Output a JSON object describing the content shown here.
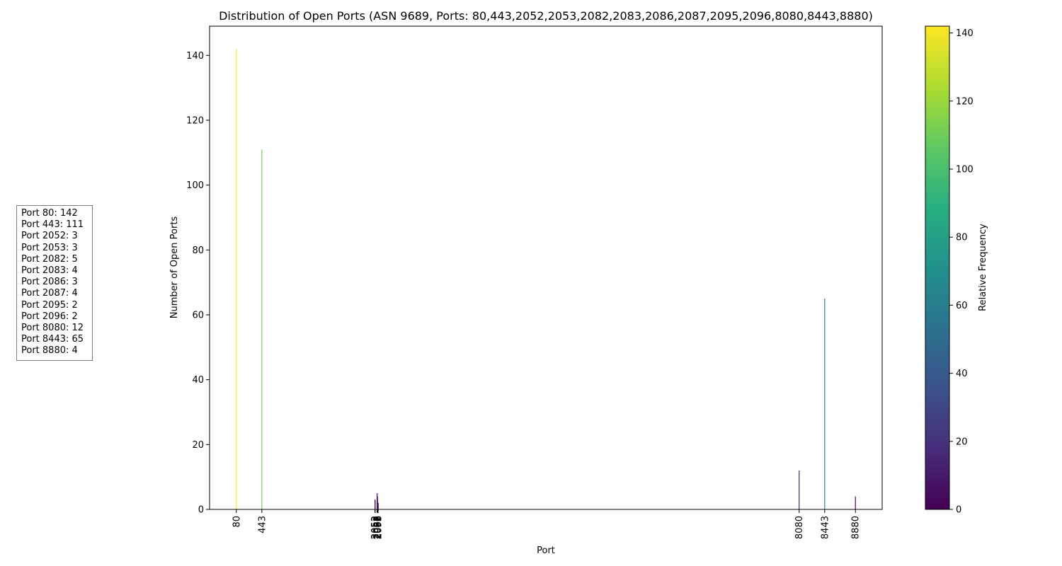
{
  "chart_data": {
    "type": "bar",
    "title": "Distribution of Open Ports (ASN 9689, Ports: 80,443,2052,2053,2082,2083,2086,2087,2095,2096,8080,8443,8880)",
    "xlabel": "Port",
    "ylabel": "Number of Open Ports",
    "x": [
      80,
      443,
      2052,
      2053,
      2082,
      2083,
      2086,
      2087,
      2095,
      2096,
      8080,
      8443,
      8880
    ],
    "categories": [
      "80",
      "443",
      "2052",
      "2053",
      "2082",
      "2083",
      "2086",
      "2087",
      "2095",
      "2096",
      "8080",
      "8443",
      "8880"
    ],
    "values": [
      142,
      111,
      3,
      3,
      5,
      4,
      3,
      4,
      2,
      2,
      12,
      65,
      4
    ],
    "xlim": [
      -300,
      9260
    ],
    "ylim": [
      0,
      149
    ],
    "yticks": [
      0,
      20,
      40,
      60,
      80,
      100,
      120,
      140
    ],
    "grid": false,
    "colormap": "viridis",
    "colorbar": {
      "label": "Relative Frequency",
      "range": [
        0,
        142
      ],
      "ticks": [
        0,
        20,
        40,
        60,
        80,
        100,
        120,
        140
      ]
    },
    "annotation": {
      "placement": "left-middle",
      "lines": [
        "Port 80: 142",
        "Port 443: 111",
        "Port 2052: 3",
        "Port 2053: 3",
        "Port 2082: 5",
        "Port 2083: 4",
        "Port 2086: 3",
        "Port 2087: 4",
        "Port 2095: 2",
        "Port 2096: 2",
        "Port 8080: 12",
        "Port 8443: 65",
        "Port 8880: 4"
      ]
    }
  }
}
